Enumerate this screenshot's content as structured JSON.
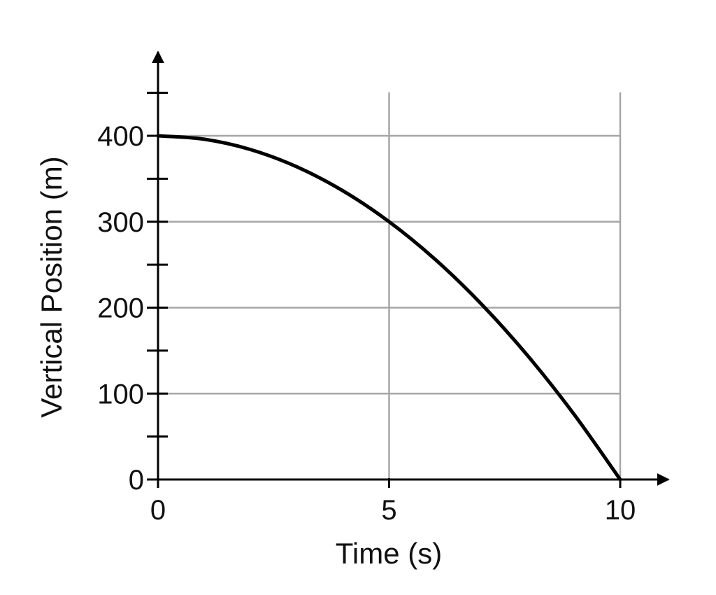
{
  "chart_data": {
    "type": "line",
    "xlabel": "Time (s)",
    "ylabel": "Vertical Position (m)",
    "xlim": [
      0,
      10
    ],
    "ylim": [
      0,
      450
    ],
    "x_ticks": [
      {
        "value": 0,
        "label": "0"
      },
      {
        "value": 5,
        "label": "5"
      },
      {
        "value": 10,
        "label": "10"
      }
    ],
    "y_ticks": [
      {
        "value": 0,
        "label": "0"
      },
      {
        "value": 100,
        "label": "100"
      },
      {
        "value": 200,
        "label": "200"
      },
      {
        "value": 300,
        "label": "300"
      },
      {
        "value": 400,
        "label": "400"
      }
    ],
    "y_minor_ticks": [
      50,
      150,
      250,
      350,
      450
    ],
    "grid_x": [
      5,
      10
    ],
    "grid_y": [
      100,
      200,
      300,
      400
    ],
    "grid": true,
    "series": [
      {
        "x": [
          0,
          1,
          2,
          3,
          4,
          5,
          6,
          7,
          8,
          9,
          10
        ],
        "y": [
          400,
          396,
          384,
          364,
          336,
          300,
          256,
          204,
          144,
          76,
          0
        ]
      }
    ],
    "colors": {
      "line": "#000000",
      "grid": "#a6a6a6",
      "axis": "#000000"
    }
  }
}
